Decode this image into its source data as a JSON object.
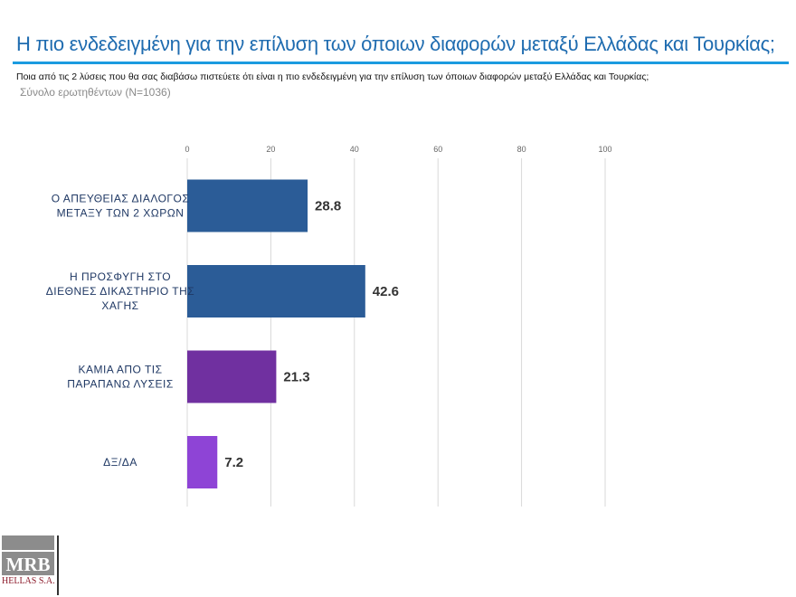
{
  "header": {
    "title": "Η πιο ενδεδειγμένη για την επίλυση των όποιων διαφορών μεταξύ Ελλάδας και Τουρκίας;",
    "subtitle": "Ποια από τις 2 λύσεις που θα σας διαβάσω πιστεύετε ότι είναι η πιο ενδεδειγμένη για την επίλυση των όποιων διαφορών μεταξύ Ελλάδας και Τουρκίας;",
    "base": "Σύνολο ερωτηθέντων (N=1036)"
  },
  "logo": {
    "text": "MRB",
    "subtext": "HELLAS S.A."
  },
  "chart_data": {
    "type": "bar",
    "orientation": "horizontal",
    "categories": [
      [
        "Ο ΑΠΕΥΘΕΙΑΣ ΔΙΑΛΟΓΟΣ",
        "ΜΕΤΑΞΥ ΤΩΝ 2 ΧΩΡΩΝ"
      ],
      [
        "Η ΠΡΟΣΦΥΓΗ ΣΤΟ",
        "ΔΙΕΘΝΕΣ ΔΙΚΑΣΤΗΡΙΟ ΤΗΣ",
        "ΧΑΓΗΣ"
      ],
      [
        "ΚΑΜΙΑ ΑΠΟ ΤΙΣ",
        "ΠΑΡΑΠΑΝΩ ΛΥΣΕΙΣ"
      ],
      [
        "ΔΞ/ΔΑ"
      ]
    ],
    "values": [
      28.8,
      42.6,
      21.3,
      7.2
    ],
    "labels": [
      "28.8",
      "42.6",
      "21.3",
      "7.2"
    ],
    "colors": [
      "#2b5c97",
      "#2b5c97",
      "#7030a0",
      "#8e44d6"
    ],
    "xlim": [
      0,
      100
    ],
    "ticks": [
      "0",
      "20",
      "40",
      "60",
      "80",
      "100"
    ],
    "tick_values": [
      0,
      20,
      40,
      60,
      80,
      100
    ],
    "grid": true,
    "axis_position": "top"
  }
}
